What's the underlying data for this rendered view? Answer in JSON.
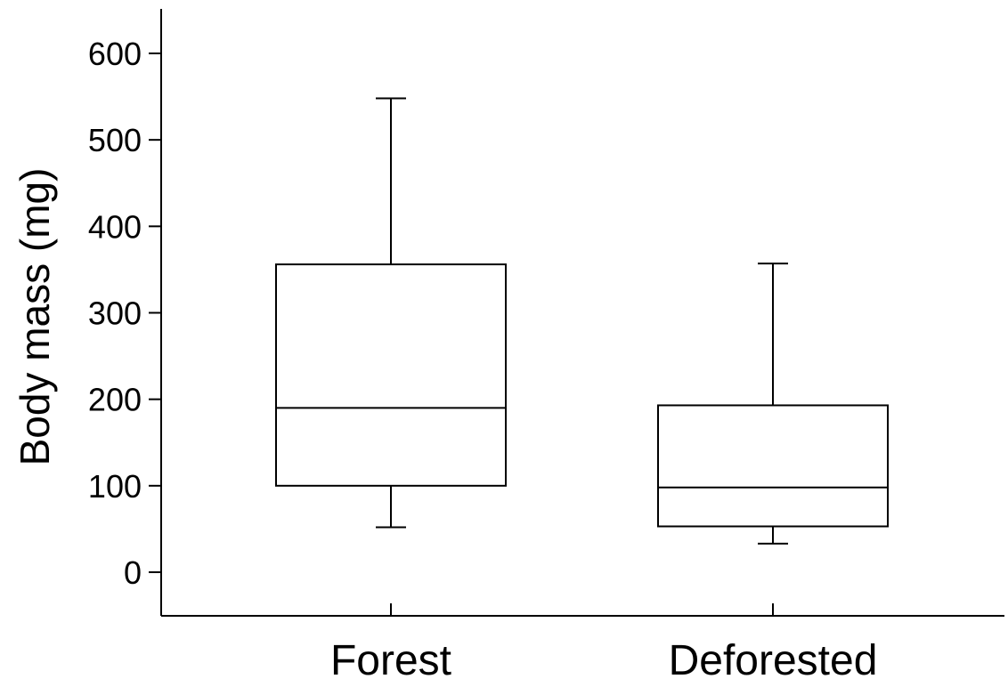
{
  "chart_data": {
    "type": "box",
    "ylabel": "Body mass (mg)",
    "xlabel": "",
    "ylim": [
      -50,
      650
    ],
    "yticks": [
      0,
      100,
      200,
      300,
      400,
      500,
      600
    ],
    "categories": [
      "Forest",
      "Deforested"
    ],
    "boxes": [
      {
        "category": "Forest",
        "whisker_low": 52,
        "q1": 100,
        "median": 190,
        "q3": 356,
        "whisker_high": 548
      },
      {
        "category": "Deforested",
        "whisker_low": 33,
        "q1": 53,
        "median": 98,
        "q3": 193,
        "whisker_high": 357
      }
    ],
    "grid": false
  }
}
